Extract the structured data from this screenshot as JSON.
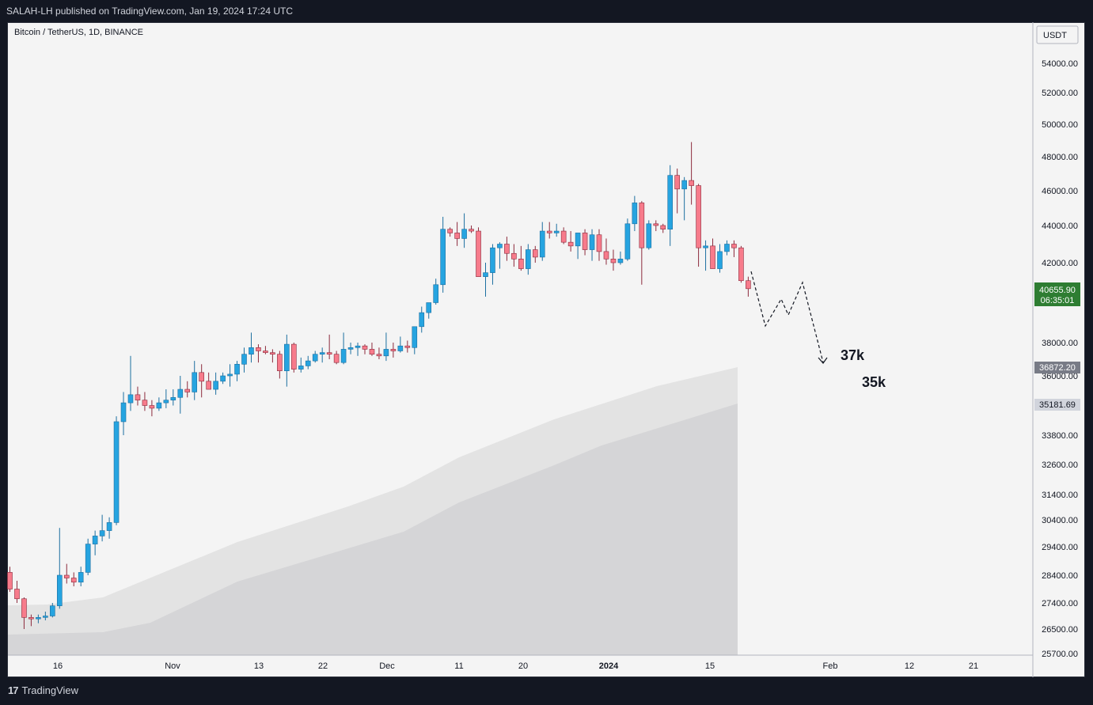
{
  "header": {
    "published": "SALAH-LH published on TradingView.com, Jan 19, 2024 17:24 UTC"
  },
  "symbol": {
    "title": "Bitcoin / TetherUS, 1D, BINANCE"
  },
  "footer": {
    "brand": "TradingView",
    "logo_icon": "tradingview-logo-icon"
  },
  "colors": {
    "up": "#26a4e0",
    "down": "#f77b8b",
    "wick_up": "#1c6fa0",
    "wick_down": "#8c2a3c",
    "price_badge": "#2e7d32",
    "gray_badge": "#787b86",
    "bg": "#f4f4f4",
    "frame": "#131722"
  },
  "chart_data": {
    "type": "candlestick",
    "title": "Bitcoin / TetherUS, 1D, BINANCE",
    "currency_label": "USDT",
    "y_ticks": [
      "54000.00",
      "52000.00",
      "50000.00",
      "48000.00",
      "46000.00",
      "44000.00",
      "42000.00",
      "38000.00",
      "36000.00",
      "33800.00",
      "32600.00",
      "31400.00",
      "30400.00",
      "29400.00",
      "28400.00",
      "27400.00",
      "26500.00",
      "25700.00"
    ],
    "x_ticks": [
      "16",
      "Nov",
      "13",
      "22",
      "Dec",
      "11",
      "20",
      "2024",
      "15",
      "Feb",
      "12",
      "21"
    ],
    "ohlc": [
      [
        28500,
        28700,
        27800,
        27900
      ],
      [
        27900,
        28200,
        27400,
        27550
      ],
      [
        27550,
        27600,
        26500,
        26900
      ],
      [
        26900,
        27000,
        26600,
        26850
      ],
      [
        26850,
        27000,
        26700,
        26900
      ],
      [
        26900,
        27100,
        26800,
        26950
      ],
      [
        26950,
        27400,
        26900,
        27300
      ],
      [
        27300,
        30100,
        27200,
        28400
      ],
      [
        28400,
        28800,
        28100,
        28300
      ],
      [
        28300,
        28500,
        28000,
        28150
      ],
      [
        28150,
        28700,
        28000,
        28500
      ],
      [
        28500,
        29700,
        28400,
        29500
      ],
      [
        29500,
        30000,
        29100,
        29800
      ],
      [
        29800,
        30600,
        29600,
        30000
      ],
      [
        30000,
        30500,
        29700,
        30300
      ],
      [
        30300,
        34500,
        30200,
        34300
      ],
      [
        34300,
        35400,
        33800,
        35000
      ],
      [
        35000,
        37200,
        34700,
        35300
      ],
      [
        35300,
        35600,
        34900,
        35100
      ],
      [
        35100,
        35400,
        34700,
        34900
      ],
      [
        34900,
        35100,
        34500,
        34800
      ],
      [
        34800,
        35200,
        34700,
        35000
      ],
      [
        35000,
        35500,
        34800,
        35100
      ],
      [
        35100,
        35500,
        34900,
        35200
      ],
      [
        35200,
        36000,
        34600,
        35500
      ],
      [
        35500,
        35800,
        35200,
        35400
      ],
      [
        35400,
        36900,
        35100,
        36200
      ],
      [
        36200,
        36700,
        35200,
        35800
      ],
      [
        35800,
        36200,
        35500,
        35500
      ],
      [
        35500,
        36200,
        35300,
        35800
      ],
      [
        35800,
        36200,
        35700,
        36000
      ],
      [
        36000,
        36700,
        35600,
        36100
      ],
      [
        36100,
        36900,
        35800,
        36700
      ],
      [
        36700,
        37700,
        36200,
        37300
      ],
      [
        37300,
        38500,
        36800,
        37700
      ],
      [
        37700,
        37900,
        36800,
        37500
      ],
      [
        37500,
        37800,
        37300,
        37400
      ],
      [
        37400,
        37600,
        36800,
        37300
      ],
      [
        37300,
        37500,
        35900,
        36300
      ],
      [
        36300,
        38400,
        35600,
        37900
      ],
      [
        37900,
        38000,
        36200,
        36400
      ],
      [
        36400,
        37100,
        36200,
        36600
      ],
      [
        36600,
        37200,
        36400,
        36900
      ],
      [
        36900,
        37500,
        36800,
        37300
      ],
      [
        37300,
        37700,
        36800,
        37400
      ],
      [
        37400,
        38400,
        37000,
        37300
      ],
      [
        37300,
        37500,
        36700,
        36800
      ],
      [
        36800,
        38500,
        36700,
        37600
      ],
      [
        37600,
        38000,
        37300,
        37700
      ],
      [
        37700,
        38000,
        37200,
        37800
      ],
      [
        37800,
        37900,
        37300,
        37600
      ],
      [
        37600,
        38000,
        37200,
        37300
      ],
      [
        37300,
        37700,
        37000,
        37200
      ],
      [
        37200,
        38500,
        36900,
        37600
      ],
      [
        37600,
        38000,
        37100,
        37500
      ],
      [
        37500,
        38300,
        37400,
        37800
      ],
      [
        37800,
        38100,
        37400,
        37700
      ],
      [
        37700,
        38600,
        37300,
        38800
      ],
      [
        38800,
        39800,
        38500,
        39500
      ],
      [
        39500,
        40000,
        39200,
        40000
      ],
      [
        40000,
        41200,
        39900,
        40900
      ],
      [
        40900,
        44500,
        40500,
        43800
      ],
      [
        43800,
        43900,
        43400,
        43600
      ],
      [
        43600,
        44200,
        42900,
        43300
      ],
      [
        43300,
        44700,
        42800,
        43800
      ],
      [
        43800,
        44000,
        43600,
        43700
      ],
      [
        43700,
        43900,
        41500,
        41300
      ],
      [
        41300,
        42000,
        40300,
        41500
      ],
      [
        41500,
        43000,
        40900,
        42800
      ],
      [
        42800,
        43100,
        41700,
        43000
      ],
      [
        43000,
        43400,
        42100,
        42500
      ],
      [
        42500,
        43000,
        41800,
        42200
      ],
      [
        42200,
        42900,
        41600,
        41700
      ],
      [
        41700,
        43000,
        41400,
        42700
      ],
      [
        42700,
        42900,
        42000,
        42300
      ],
      [
        42300,
        44200,
        42100,
        43700
      ],
      [
        43700,
        44200,
        43300,
        43600
      ],
      [
        43600,
        44100,
        43400,
        43700
      ],
      [
        43700,
        43900,
        43000,
        43100
      ],
      [
        43100,
        43700,
        42600,
        42900
      ],
      [
        42900,
        43600,
        42200,
        43600
      ],
      [
        43600,
        43800,
        42400,
        42700
      ],
      [
        42700,
        43800,
        42100,
        43500
      ],
      [
        43500,
        43800,
        42100,
        42600
      ],
      [
        42600,
        43300,
        41900,
        42200
      ],
      [
        42200,
        42700,
        41600,
        42000
      ],
      [
        42000,
        42600,
        41900,
        42200
      ],
      [
        42200,
        44400,
        42100,
        44100
      ],
      [
        44100,
        45700,
        43700,
        45300
      ],
      [
        45300,
        45400,
        40900,
        42800
      ],
      [
        42800,
        44300,
        42700,
        44100
      ],
      [
        44100,
        44300,
        43700,
        44000
      ],
      [
        44000,
        44100,
        43600,
        43800
      ],
      [
        43800,
        47500,
        42900,
        46900
      ],
      [
        46900,
        47300,
        44700,
        46100
      ],
      [
        46100,
        46800,
        44300,
        46600
      ],
      [
        46600,
        48900,
        45200,
        46300
      ],
      [
        46300,
        46400,
        41800,
        42800
      ],
      [
        42800,
        43200,
        41600,
        42900
      ],
      [
        42900,
        43300,
        41700,
        41700
      ],
      [
        41700,
        43000,
        41500,
        42600
      ],
      [
        42600,
        43200,
        42400,
        43000
      ],
      [
        43000,
        43200,
        42300,
        42800
      ],
      [
        42800,
        42900,
        41000,
        41100
      ],
      [
        41100,
        41300,
        40300,
        40700
      ]
    ],
    "last_price": "40655.90",
    "countdown": "06:35:01",
    "ema_label_1": "36872.20",
    "ema_label_2": "35181.69",
    "annotations": [
      "37k",
      "35k"
    ]
  }
}
